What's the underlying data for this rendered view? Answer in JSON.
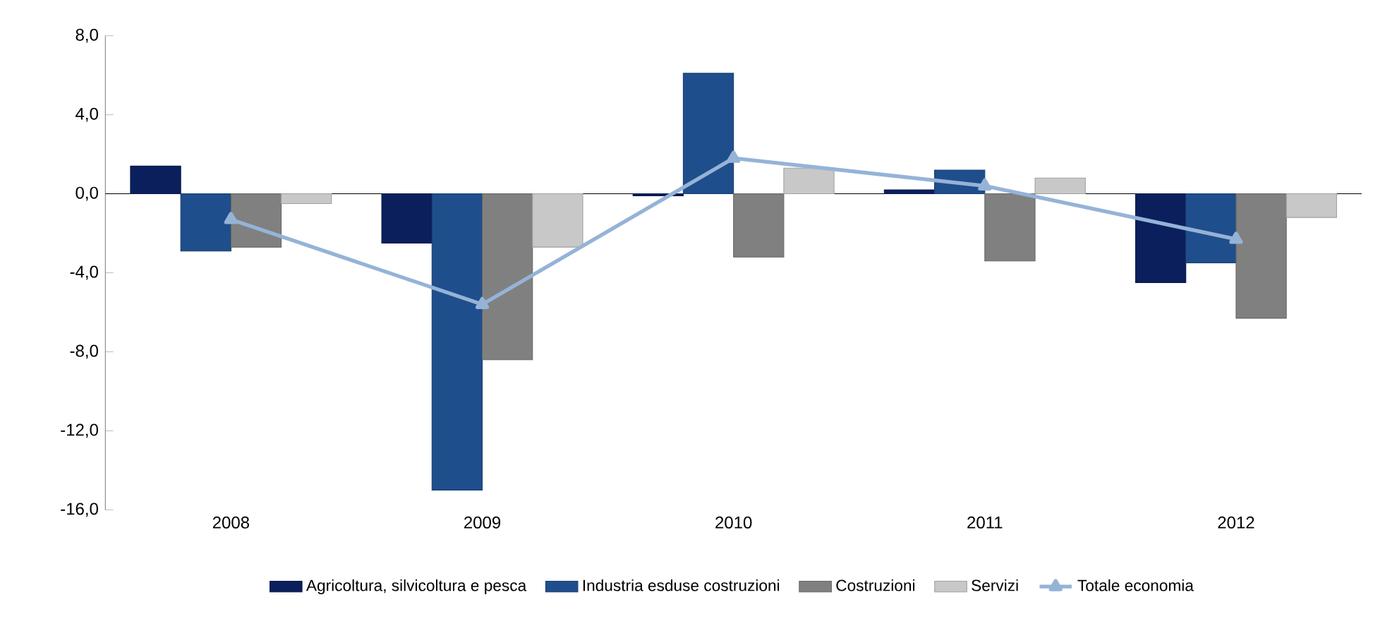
{
  "chart_data": {
    "type": "bar",
    "categories": [
      "2008",
      "2009",
      "2010",
      "2011",
      "2012"
    ],
    "series": [
      {
        "name": "Agricoltura, silvicoltura e pesca",
        "color": "#0b1f5c",
        "values": [
          1.4,
          -2.5,
          -0.1,
          0.2,
          -4.5
        ]
      },
      {
        "name": "Industria esduse costruzioni",
        "color": "#1f4e8c",
        "values": [
          -2.9,
          -15.0,
          6.1,
          1.2,
          -3.5
        ]
      },
      {
        "name": "Costruzioni",
        "color": "#808080",
        "values": [
          -2.7,
          -8.4,
          -3.2,
          -3.4,
          -6.3
        ]
      },
      {
        "name": "Servizi",
        "color": "#c8c8c8",
        "values": [
          -0.5,
          -2.7,
          1.3,
          0.8,
          -1.2
        ]
      },
      {
        "name": "Totale economia",
        "type": "line",
        "color": "#95b3d7",
        "marker": "triangle",
        "values": [
          -1.3,
          -5.6,
          1.8,
          0.4,
          -2.3
        ]
      }
    ],
    "ylim": [
      -16,
      8
    ],
    "yticks": [
      {
        "value": -16,
        "label": "-16,0"
      },
      {
        "value": -12,
        "label": "-12,0"
      },
      {
        "value": -8,
        "label": "-8,0"
      },
      {
        "value": -4,
        "label": "-4,0"
      },
      {
        "value": 0,
        "label": "0,0"
      },
      {
        "value": 4,
        "label": "4,0"
      },
      {
        "value": 8,
        "label": "8,0"
      }
    ],
    "legend": "bottom"
  }
}
